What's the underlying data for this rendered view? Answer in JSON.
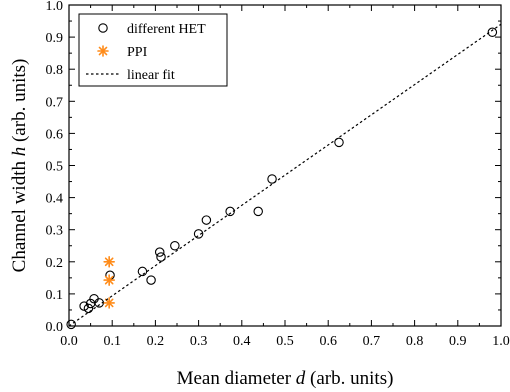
{
  "chart_data": {
    "type": "scatter",
    "xlabel": "Mean diameter d (arb. units)",
    "xlabel_parts": [
      "Mean diameter ",
      "d",
      " (arb. units)"
    ],
    "ylabel": "Channel width h (arb. units)",
    "ylabel_parts": [
      "Channel width ",
      "h",
      " (arb. units)"
    ],
    "xlim": [
      0.0,
      1.0
    ],
    "ylim": [
      0.0,
      1.0
    ],
    "x_ticks": [
      "0.0",
      "0.1",
      "0.2",
      "0.3",
      "0.4",
      "0.5",
      "0.6",
      "0.7",
      "0.8",
      "0.9",
      "1.0"
    ],
    "y_ticks": [
      "0.0",
      "0.1",
      "0.2",
      "0.3",
      "0.4",
      "0.5",
      "0.6",
      "0.7",
      "0.8",
      "0.9",
      "1.0"
    ],
    "grid": false,
    "legend_position": "top-left",
    "series": [
      {
        "name": "different HET",
        "marker": "open-circle",
        "color": "#000000",
        "points": [
          [
            0.005,
            0.005
          ],
          [
            0.035,
            0.062
          ],
          [
            0.045,
            0.055
          ],
          [
            0.05,
            0.07
          ],
          [
            0.058,
            0.085
          ],
          [
            0.07,
            0.072
          ],
          [
            0.095,
            0.158
          ],
          [
            0.17,
            0.17
          ],
          [
            0.19,
            0.143
          ],
          [
            0.21,
            0.23
          ],
          [
            0.213,
            0.215
          ],
          [
            0.245,
            0.25
          ],
          [
            0.3,
            0.287
          ],
          [
            0.318,
            0.33
          ],
          [
            0.373,
            0.357
          ],
          [
            0.438,
            0.357
          ],
          [
            0.47,
            0.458
          ],
          [
            0.625,
            0.572
          ],
          [
            0.98,
            0.915
          ]
        ]
      },
      {
        "name": "PPI",
        "marker": "asterisk",
        "color": "#ff8c1a",
        "points": [
          [
            0.093,
            0.2
          ],
          [
            0.093,
            0.143
          ],
          [
            0.093,
            0.072
          ]
        ]
      },
      {
        "name": "linear fit",
        "line_style": "dotted",
        "color": "#000000",
        "line": [
          [
            0.0,
            0.0
          ],
          [
            1.0,
            0.94
          ]
        ]
      }
    ]
  }
}
